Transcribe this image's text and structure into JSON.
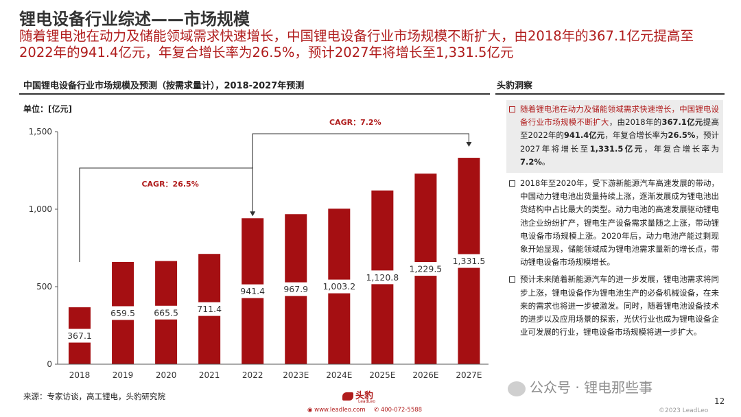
{
  "header": {
    "title": "锂电设备行业综述——市场规模",
    "subtitle": "随着锂电池在动力及储能领域需求快速增长，中国锂电设备行业市场规模不断扩大，由2018年的367.1亿元提高至2022年的941.4亿元，年复合增长率为26.5%，预计2027年将增长至1,331.5亿元"
  },
  "chart_section": {
    "heading": "中国锂电设备行业市场规模及预测（按需求量计），2018-2027年预测",
    "unit": "单位：[亿元]",
    "source": "来源：专家访谈，高工锂电，头豹研究院"
  },
  "chart_data": {
    "type": "bar",
    "categories": [
      "2018",
      "2019",
      "2020",
      "2021",
      "2022",
      "2023E",
      "2024E",
      "2025E",
      "2026E",
      "2027E"
    ],
    "values": [
      367.1,
      659.5,
      665.5,
      711.4,
      941.4,
      967.9,
      1003.2,
      1120.8,
      1229.5,
      1331.5
    ],
    "value_labels": [
      "367.1",
      "659.5",
      "665.5",
      "711.4",
      "941.4",
      "967.9",
      "1,003.2",
      "1,120.8",
      "1,229.5",
      "1,331.5"
    ],
    "yticks": [
      0,
      500,
      1000,
      1500
    ],
    "ytick_labels": [
      "0",
      "500",
      "1,000",
      "1,500"
    ],
    "ylim": [
      0,
      1500
    ],
    "bar_color": "#a50f12",
    "annotations": [
      {
        "text": "CAGR：26.5%",
        "from": "2018",
        "to": "2022"
      },
      {
        "text": "CAGR：7.2%",
        "from": "2022",
        "to": "2027E"
      }
    ],
    "annotation_color": "#b01c1c"
  },
  "insights": {
    "heading": "头豹洞察",
    "para1": {
      "lead_red": "随着锂电池在动力及储能领域需求快速增长，中国锂电设备行业市场规模不断扩大",
      "t1": "，由2018年的",
      "b1": "367.1亿元",
      "t2": "提高至2022年的",
      "b2": "941.4亿元",
      "t3": "，年复合增长率为",
      "b3": "26.5%",
      "t4": "，预计2027年将增长至",
      "b4": "1,331.5亿元",
      "t5": "，年复合增长率为",
      "b5": "7.2%",
      "t6": "。"
    },
    "para2": "2018年至2020年，受下游新能源汽车高速发展的带动，中国动力锂电池出货量持续上涨，逐渐发展成为锂电池出货结构中占比最大的类型。动力电池的高速发展驱动锂电池企业纷纷扩产，锂电生产设备需求量随之上涨，带动锂电设备市场规模上涨。2020年后，动力电池产能过剩现象开始显现，储能领域成为锂电池需求量新的增长点，带动锂电设备市场规模增长。",
    "para3": "预计未来随着新能源汽车的进一步发展，锂电池需求将同步上涨，锂电设备作为锂电池生产的必备机械设备，在未来的需求也将进一步被激发。同时，随着锂电池设备技术的进步以及应用场景的探索，光伏行业也成为锂电设备企业可发展的行业，锂电设备市场规模将进一步扩大。"
  },
  "footer": {
    "logo_text": "头豹",
    "logo_sub": "LeadLeo",
    "website": "www.leadleo.com",
    "phone": "400-072-5588",
    "watermark": "公众号 · 锂电那些事",
    "page_number": "12",
    "copyright": "©2023 LeadLeo"
  }
}
